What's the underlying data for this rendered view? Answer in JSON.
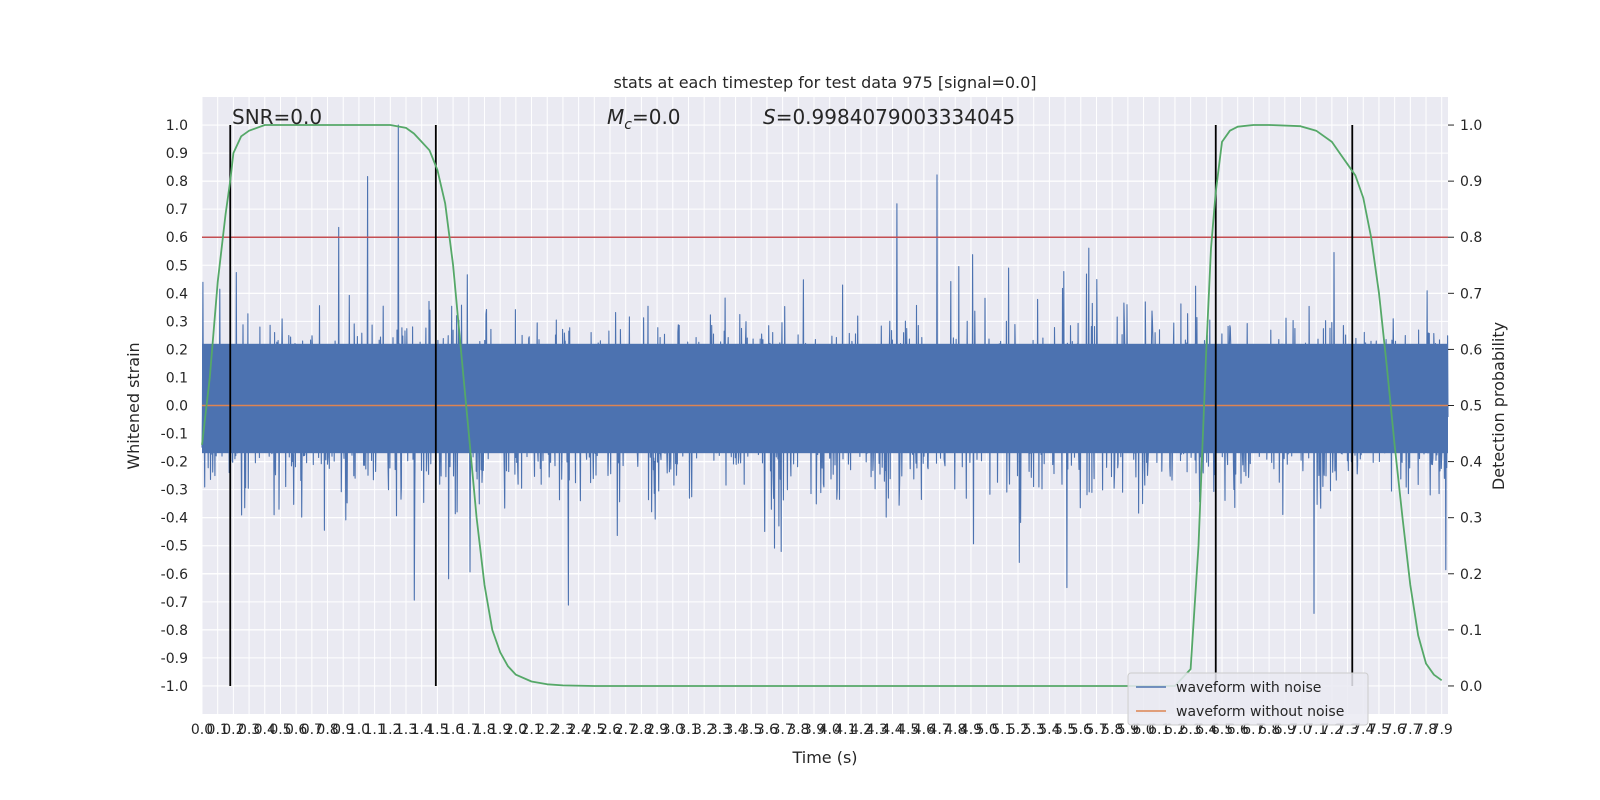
{
  "chart_data": {
    "type": "line",
    "title": "stats at each timestep for test data 975 [signal=0.0]",
    "xlabel": "Time (s)",
    "ylabel": "Whitened strain",
    "y2label": "Detection probability",
    "xlim": [
      0.0,
      7.94
    ],
    "ylim": [
      -1.1,
      1.1
    ],
    "y2lim": [
      -0.05,
      1.05
    ],
    "x_ticks": [
      "0.0",
      "0.1",
      "0.2",
      "0.3",
      "0.4",
      "0.5",
      "0.6",
      "0.7",
      "0.8",
      "0.9",
      "1.0",
      "1.1",
      "1.2",
      "1.3",
      "1.4",
      "1.5",
      "1.6",
      "1.7",
      "1.8",
      "1.9",
      "2.0",
      "2.1",
      "2.2",
      "2.3",
      "2.4",
      "2.5",
      "2.6",
      "2.7",
      "2.8",
      "2.9",
      "3.0",
      "3.1",
      "3.2",
      "3.3",
      "3.4",
      "3.5",
      "3.6",
      "3.7",
      "3.8",
      "3.9",
      "4.0",
      "4.1",
      "4.2",
      "4.3",
      "4.4",
      "4.5",
      "4.6",
      "4.7",
      "4.8",
      "4.9",
      "5.0",
      "5.1",
      "5.2",
      "5.3",
      "5.4",
      "5.5",
      "5.6",
      "5.7",
      "5.8",
      "5.9",
      "6.0",
      "6.1",
      "6.2",
      "6.3",
      "6.4",
      "6.5",
      "6.6",
      "6.7",
      "6.8",
      "6.9",
      "7.0",
      "7.1",
      "7.2",
      "7.3",
      "7.4",
      "7.5",
      "7.6",
      "7.7",
      "7.8",
      "7.9"
    ],
    "y_ticks": [
      "-1.0",
      "-0.9",
      "-0.8",
      "-0.7",
      "-0.6",
      "-0.5",
      "-0.4",
      "-0.3",
      "-0.2",
      "-0.1",
      "0.0",
      "0.1",
      "0.2",
      "0.3",
      "0.4",
      "0.5",
      "0.6",
      "0.7",
      "0.8",
      "0.9",
      "1.0"
    ],
    "y2_ticks": [
      "0.0",
      "0.1",
      "0.2",
      "0.3",
      "0.4",
      "0.5",
      "0.6",
      "0.7",
      "0.8",
      "0.9",
      "1.0"
    ],
    "threshold": 0.8,
    "detection_boundaries": [
      0.18,
      1.49,
      6.46,
      7.33
    ],
    "noise_amplitude": 0.42,
    "series": [
      {
        "name": "waveform with noise",
        "color": "#4c72b0"
      },
      {
        "name": "waveform without noise",
        "color": "#dd8452",
        "x": [
          0.0,
          7.94
        ],
        "y": [
          0.0,
          0.0
        ]
      },
      {
        "color": "#55a868",
        "axis": "right",
        "x": [
          0.0,
          0.05,
          0.1,
          0.15,
          0.18,
          0.2,
          0.25,
          0.3,
          0.4,
          0.5,
          0.7,
          1.0,
          1.2,
          1.3,
          1.35,
          1.4,
          1.45,
          1.5,
          1.55,
          1.6,
          1.65,
          1.7,
          1.75,
          1.8,
          1.85,
          1.9,
          1.95,
          2.0,
          2.1,
          2.2,
          2.3,
          2.5,
          3.0,
          4.0,
          5.0,
          6.0,
          6.2,
          6.3,
          6.35,
          6.4,
          6.43,
          6.46,
          6.5,
          6.55,
          6.6,
          6.7,
          6.8,
          7.0,
          7.1,
          7.2,
          7.25,
          7.3,
          7.35,
          7.4,
          7.45,
          7.5,
          7.55,
          7.6,
          7.65,
          7.7,
          7.75,
          7.8,
          7.85,
          7.9
        ],
        "y": [
          0.43,
          0.55,
          0.72,
          0.84,
          0.9,
          0.95,
          0.98,
          0.99,
          1.0,
          1.0,
          1.0,
          1.0,
          1.0,
          0.995,
          0.985,
          0.97,
          0.955,
          0.92,
          0.86,
          0.75,
          0.6,
          0.45,
          0.3,
          0.18,
          0.1,
          0.06,
          0.035,
          0.02,
          0.008,
          0.003,
          0.001,
          0.0,
          0.0,
          0.0,
          0.0,
          0.0,
          0.0,
          0.03,
          0.25,
          0.6,
          0.78,
          0.88,
          0.97,
          0.99,
          0.997,
          1.0,
          1.0,
          0.998,
          0.99,
          0.97,
          0.95,
          0.93,
          0.91,
          0.87,
          0.8,
          0.7,
          0.57,
          0.43,
          0.3,
          0.18,
          0.09,
          0.04,
          0.02,
          0.01
        ]
      }
    ],
    "annotations": {
      "snr": "SNR=0.0",
      "mc_symbol": "M",
      "mc_sub": "c",
      "mc_value": "=0.0",
      "s_symbol": "S",
      "s_value": "=0.9984079003334045"
    },
    "legend_position": "lower right",
    "grid": true
  }
}
